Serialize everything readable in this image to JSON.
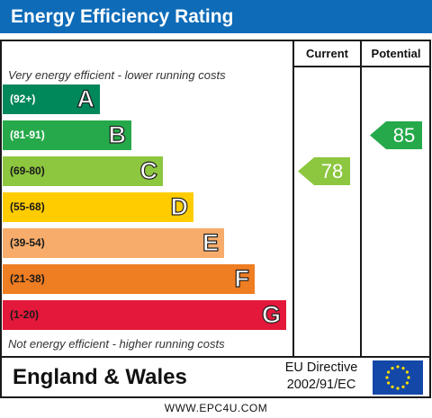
{
  "title": "Energy Efficiency Rating",
  "columns": {
    "current": "Current",
    "potential": "Potential"
  },
  "captions": {
    "top": "Very energy efficient - lower running costs",
    "bottom": "Not energy efficient - higher running costs"
  },
  "chart_data": {
    "type": "bar",
    "title": "Energy Efficiency Rating",
    "bands": [
      {
        "letter": "A",
        "range": "(92+)",
        "color": "#00875a"
      },
      {
        "letter": "B",
        "range": "(81-91)",
        "color": "#25a94a"
      },
      {
        "letter": "C",
        "range": "(69-80)",
        "color": "#8dc63f"
      },
      {
        "letter": "D",
        "range": "(55-68)",
        "color": "#ffcc00"
      },
      {
        "letter": "E",
        "range": "(39-54)",
        "color": "#f7ac6b"
      },
      {
        "letter": "F",
        "range": "(21-38)",
        "color": "#ef7d22"
      },
      {
        "letter": "G",
        "range": "(1-20)",
        "color": "#e3183b"
      }
    ],
    "current": {
      "value": 78,
      "band": "C",
      "color": "#8dc63f"
    },
    "potential": {
      "value": 85,
      "band": "B",
      "color": "#25a94a"
    }
  },
  "footer": {
    "country": "England & Wales",
    "directive_line1": "EU Directive",
    "directive_line2": "2002/91/EC",
    "flag_icon": "eu-flag-icon"
  },
  "website": "WWW.EPC4U.COM"
}
